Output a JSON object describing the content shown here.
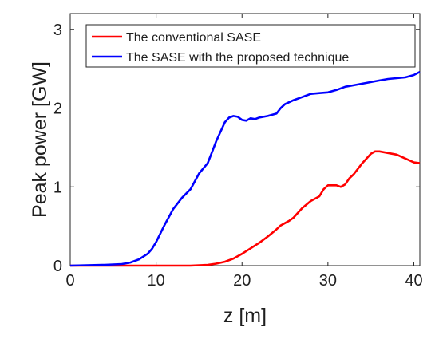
{
  "chart_data": {
    "type": "line",
    "title": "",
    "xlabel": "z [m]",
    "ylabel": "Peak power [GW]",
    "xlim": [
      0,
      40.7
    ],
    "ylim": [
      0,
      3.2
    ],
    "xticks": [
      0,
      10,
      20,
      30,
      40
    ],
    "yticks": [
      0,
      1,
      2,
      3
    ],
    "grid": false,
    "legend_position": "top-right",
    "series": [
      {
        "name": "The conventional SASE",
        "color": "#ff0000",
        "x": [
          0,
          5,
          10,
          14,
          16,
          17,
          18,
          19,
          20,
          21,
          22,
          23,
          24,
          24.5,
          25,
          25.5,
          26,
          27,
          28,
          29,
          29.5,
          30,
          31,
          31.5,
          32,
          32.5,
          33,
          34,
          35,
          35.5,
          36,
          37,
          38,
          39,
          40,
          40.7
        ],
        "y": [
          0,
          0,
          0,
          0,
          0.01,
          0.025,
          0.05,
          0.09,
          0.15,
          0.22,
          0.29,
          0.37,
          0.46,
          0.51,
          0.54,
          0.57,
          0.61,
          0.73,
          0.82,
          0.88,
          0.97,
          1.02,
          1.02,
          1.0,
          1.03,
          1.11,
          1.16,
          1.3,
          1.42,
          1.45,
          1.45,
          1.43,
          1.41,
          1.36,
          1.31,
          1.3
        ]
      },
      {
        "name": "The SASE with the proposed technique",
        "color": "#0000ff",
        "x": [
          0,
          4,
          6,
          7,
          8,
          9,
          9.5,
          10,
          11,
          12,
          13,
          14,
          15,
          16,
          16.5,
          17,
          17.5,
          18,
          18.5,
          19,
          19.5,
          20,
          20.5,
          21,
          21.5,
          22,
          23,
          24,
          24.5,
          25,
          26,
          27,
          28,
          29,
          30,
          31,
          32,
          33,
          34,
          35,
          36,
          37,
          38,
          39,
          40,
          40.7
        ],
        "y": [
          0,
          0.01,
          0.02,
          0.04,
          0.08,
          0.15,
          0.21,
          0.3,
          0.52,
          0.72,
          0.86,
          0.97,
          1.17,
          1.3,
          1.44,
          1.58,
          1.7,
          1.82,
          1.88,
          1.9,
          1.89,
          1.85,
          1.84,
          1.87,
          1.86,
          1.88,
          1.9,
          1.93,
          2.0,
          2.05,
          2.1,
          2.14,
          2.18,
          2.19,
          2.2,
          2.23,
          2.27,
          2.29,
          2.31,
          2.33,
          2.35,
          2.37,
          2.38,
          2.39,
          2.42,
          2.46
        ]
      }
    ]
  }
}
